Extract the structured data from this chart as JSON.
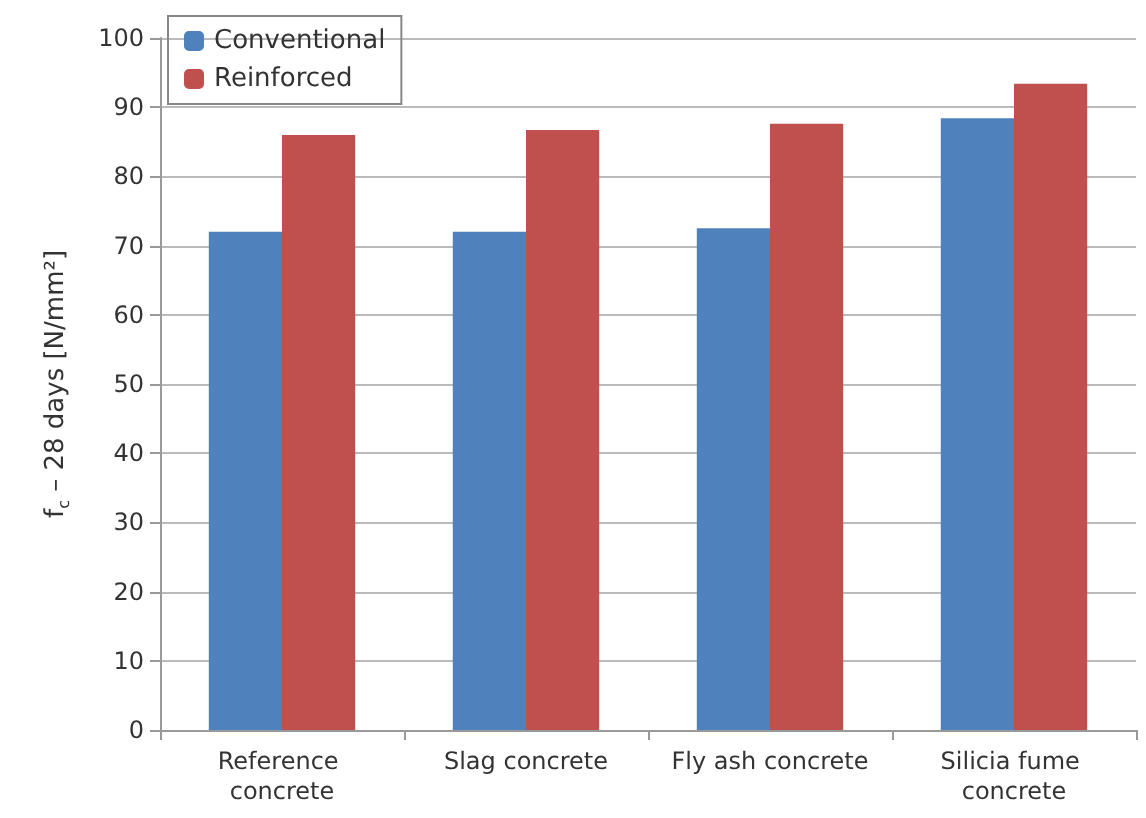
{
  "chart_data": {
    "type": "bar",
    "ylabel": "f$_{c}$ – 28 days [N/mm²]",
    "categories": [
      "Reference concrete",
      "Slag concrete",
      "Fly ash concrete",
      "Silicia fume concrete"
    ],
    "series": [
      {
        "name": "Conventional",
        "color": "#4f81bd",
        "values": [
          72,
          72,
          72.5,
          88.4
        ]
      },
      {
        "name": "Reinforced",
        "color": "#c0504d",
        "values": [
          86,
          86.7,
          87.6,
          93.4
        ]
      }
    ],
    "ylim": [
      0,
      100
    ],
    "yticks": [
      0,
      10,
      20,
      30,
      40,
      50,
      60,
      70,
      80,
      90,
      100
    ],
    "grid": "y",
    "legend": "top left"
  }
}
